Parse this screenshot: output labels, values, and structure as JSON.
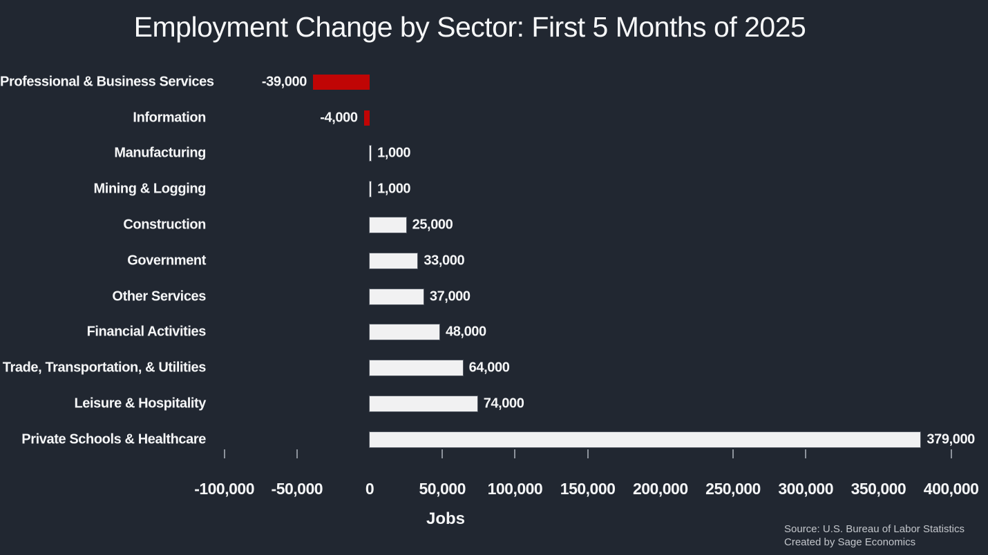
{
  "chart_data": {
    "type": "bar",
    "orientation": "horizontal",
    "title": "Employment Change by Sector: First 5 Months of 2025",
    "xlabel": "Jobs",
    "categories": [
      "Professional & Business Services",
      "Information",
      "Manufacturing",
      "Mining & Logging",
      "Construction",
      "Government",
      "Other Services",
      "Financial Activities",
      "Trade, Transportation, & Utilities",
      "Leisure & Hospitality",
      "Private Schools & Healthcare"
    ],
    "values": [
      -39000,
      -4000,
      1000,
      1000,
      25000,
      33000,
      37000,
      48000,
      64000,
      74000,
      379000
    ],
    "value_labels": [
      "-39,000",
      "-4,000",
      "1,000",
      "1,000",
      "25,000",
      "33,000",
      "37,000",
      "48,000",
      "64,000",
      "74,000",
      "379,000"
    ],
    "xlim": [
      -100000,
      400000
    ],
    "x_ticks": [
      {
        "label": "-100,000",
        "value": -100000,
        "mark": true
      },
      {
        "label": "-50,000",
        "value": -50000,
        "mark": true
      },
      {
        "label": "0",
        "value": 0,
        "mark": false
      },
      {
        "label": "50,000",
        "value": 50000,
        "mark": true
      },
      {
        "label": "100,000",
        "value": 100000,
        "mark": true
      },
      {
        "label": "150,000",
        "value": 150000,
        "mark": true
      },
      {
        "label": "200,000",
        "value": 200000,
        "mark": false
      },
      {
        "label": "250,000",
        "value": 250000,
        "mark": true
      },
      {
        "label": "300,000",
        "value": 300000,
        "mark": true
      },
      {
        "label": "350,000",
        "value": 350000,
        "mark": false
      },
      {
        "label": "400,000",
        "value": 400000,
        "mark": true
      }
    ],
    "grid": false,
    "legend": "none",
    "colors": {
      "background": "#212731",
      "positive_bar": "#f1f1f2",
      "negative_bar": "#c00505",
      "text": "#f5f6f7",
      "tick": "#8d939c",
      "source_text": "#c3c6cb"
    }
  },
  "footer": {
    "source": "Source: U.S. Bureau of Labor Statistics",
    "credit": "Created by Sage Economics"
  }
}
